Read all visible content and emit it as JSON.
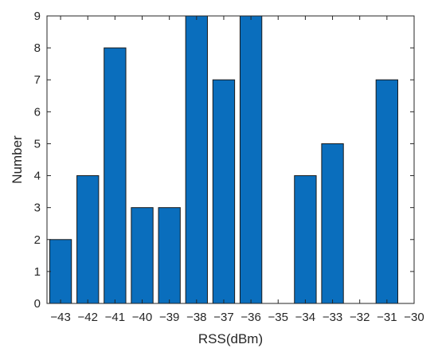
{
  "chart_data": {
    "type": "bar",
    "xlabel": "RSS(dBm)",
    "ylabel": "Number",
    "xlim": [
      -43.5,
      -30
    ],
    "ylim": [
      0,
      9
    ],
    "x_ticks": [
      -43,
      -42,
      -41,
      -40,
      -39,
      -38,
      -37,
      -36,
      -35,
      -34,
      -33,
      -32,
      -31,
      -30
    ],
    "y_ticks": [
      0,
      1,
      2,
      3,
      4,
      5,
      6,
      7,
      8,
      9
    ],
    "categories": [
      -43,
      -42,
      -41,
      -40,
      -39,
      -38,
      -37,
      -36,
      -34,
      -33,
      -31
    ],
    "values": [
      2,
      4,
      8,
      3,
      3,
      9,
      7,
      9,
      4,
      5,
      7
    ],
    "bar_color": "#0A6EBD",
    "bar_edge_color": "#1a1a1a",
    "grid": false,
    "legend": "none"
  }
}
